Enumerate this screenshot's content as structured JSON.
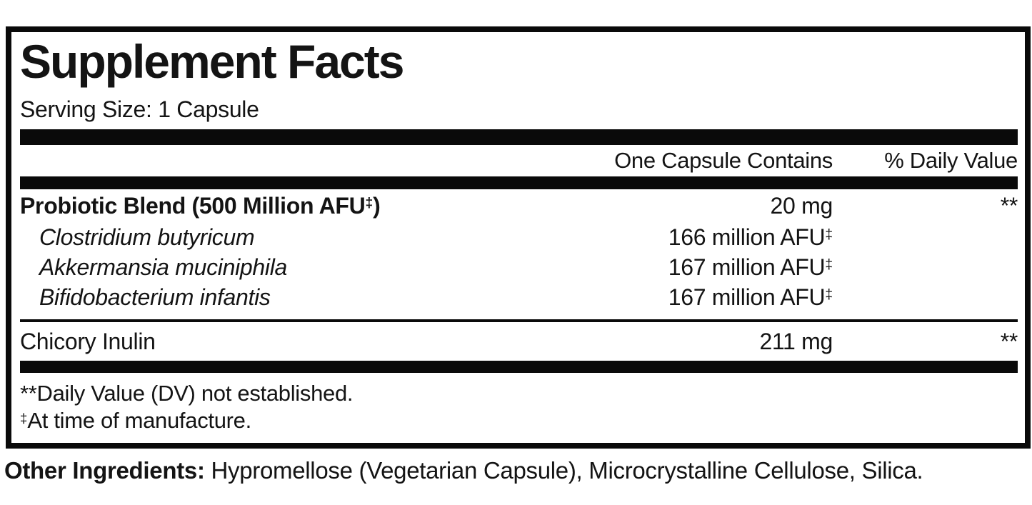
{
  "label": {
    "title": "Supplement Facts",
    "serving_size": "Serving Size: 1 Capsule",
    "header": {
      "amount_col": "One Capsule Contains",
      "dv_col": "% Daily Value"
    },
    "rows": [
      {
        "name": "Probiotic Blend (500 Million AFU",
        "name_sup": "‡",
        "name_after": ")",
        "amount": "20 mg",
        "amount_sup": "",
        "dv": "**"
      },
      {
        "name": "Clostridium butyricum",
        "name_sup": "",
        "name_after": "",
        "amount": "166 million AFU",
        "amount_sup": "‡",
        "dv": ""
      },
      {
        "name": "Akkermansia muciniphila",
        "name_sup": "",
        "name_after": "",
        "amount": "167 million AFU",
        "amount_sup": "‡",
        "dv": ""
      },
      {
        "name": "Bifidobacterium infantis",
        "name_sup": "",
        "name_after": "",
        "amount": "167 million AFU",
        "amount_sup": "‡",
        "dv": ""
      },
      {
        "name": "Chicory Inulin",
        "name_sup": "",
        "name_after": "",
        "amount": "211 mg",
        "amount_sup": "",
        "dv": "**"
      }
    ],
    "footnotes": {
      "dv_note": "**Daily Value (DV) not established.",
      "mfr_sup": "‡",
      "mfr_note": "At time of manufacture."
    }
  },
  "other_ingredients": {
    "label": "Other Ingredients:",
    "text": " Hypromellose (Vegetarian Capsule), Microcrystalline Cellulose, Silica."
  },
  "colors": {
    "ink": "#0a0a0a",
    "background": "#ffffff"
  }
}
